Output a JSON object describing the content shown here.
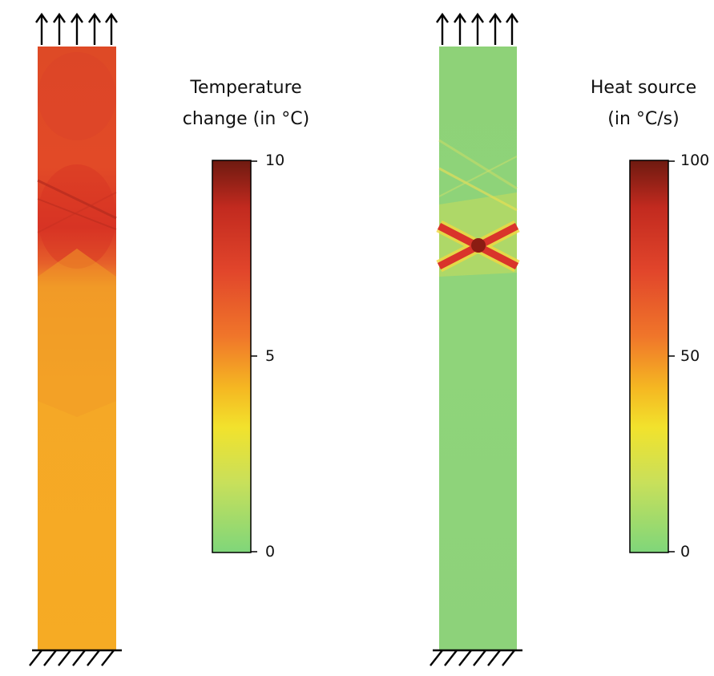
{
  "panels": [
    {
      "id": "temperature",
      "legend": {
        "title_line1": "Temperature",
        "title_line2": "change (in °C)",
        "ticks": [
          "10",
          "5",
          "0"
        ],
        "range": [
          0,
          10
        ]
      },
      "load_arrow_count": 5,
      "support_hatch_count": 6
    },
    {
      "id": "heat-source",
      "legend": {
        "title_line1": "Heat source",
        "title_line2": "(in °C/s)",
        "ticks": [
          "100",
          "50",
          "0"
        ],
        "range": [
          0,
          100
        ]
      },
      "load_arrow_count": 5,
      "support_hatch_count": 6
    }
  ],
  "colors": {
    "scale_low": "#7fd67a",
    "scale_yellow": "#e8e030",
    "scale_orange": "#f5a623",
    "scale_red": "#d9342b",
    "scale_high": "#7a1a10",
    "specimen_temp_base": "#f5aa25",
    "specimen_temp_hot": "#dc3d28",
    "specimen_heat_base": "#8fd47a",
    "band_highlight": "#d9342b"
  }
}
